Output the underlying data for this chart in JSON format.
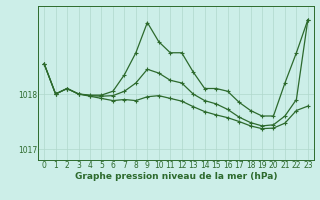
{
  "xlabel": "Graphe pression niveau de la mer (hPa)",
  "bg_color": "#cceee8",
  "line_color": "#2d6a2d",
  "grid_color": "#b0d8cc",
  "x": [
    0,
    1,
    2,
    3,
    4,
    5,
    6,
    7,
    8,
    9,
    10,
    11,
    12,
    13,
    14,
    15,
    16,
    17,
    18,
    19,
    20,
    21,
    22,
    23
  ],
  "series": {
    "top": [
      1018.55,
      1018.0,
      1018.1,
      1018.0,
      1017.98,
      1017.98,
      1018.05,
      1018.35,
      1018.75,
      1019.3,
      1018.95,
      1018.75,
      1018.75,
      1018.4,
      1018.1,
      1018.1,
      1018.05,
      1017.85,
      1017.7,
      1017.6,
      1017.6,
      1018.2,
      1018.75,
      1019.35
    ],
    "mid": [
      1018.55,
      1018.0,
      1018.1,
      1018.0,
      1017.97,
      1017.96,
      1017.97,
      1018.05,
      1018.2,
      1018.45,
      1018.38,
      1018.25,
      1018.2,
      1018.0,
      1017.88,
      1017.82,
      1017.72,
      1017.58,
      1017.48,
      1017.42,
      1017.44,
      1017.6,
      1017.9,
      1019.35
    ],
    "bot": [
      1018.55,
      1018.0,
      1018.1,
      1018.0,
      1017.96,
      1017.92,
      1017.88,
      1017.9,
      1017.88,
      1017.95,
      1017.97,
      1017.92,
      1017.87,
      1017.77,
      1017.68,
      1017.62,
      1017.57,
      1017.5,
      1017.42,
      1017.37,
      1017.38,
      1017.47,
      1017.7,
      1017.78
    ]
  },
  "ylim": [
    1016.8,
    1019.6
  ],
  "yticks": [
    1017,
    1018
  ],
  "xlim": [
    -0.5,
    23.5
  ],
  "xticks": [
    0,
    1,
    2,
    3,
    4,
    5,
    6,
    7,
    8,
    9,
    10,
    11,
    12,
    13,
    14,
    15,
    16,
    17,
    18,
    19,
    20,
    21,
    22,
    23
  ],
  "xticklabels": [
    "0",
    "1",
    "2",
    "3",
    "4",
    "5",
    "6",
    "7",
    "8",
    "9",
    "10",
    "11",
    "12",
    "13",
    "14",
    "15",
    "16",
    "17",
    "18",
    "19",
    "20",
    "21",
    "22",
    "23"
  ],
  "marker": "+",
  "markersize": 3,
  "linewidth": 0.9,
  "tick_fontsize": 5.5,
  "xlabel_fontsize": 6.5
}
